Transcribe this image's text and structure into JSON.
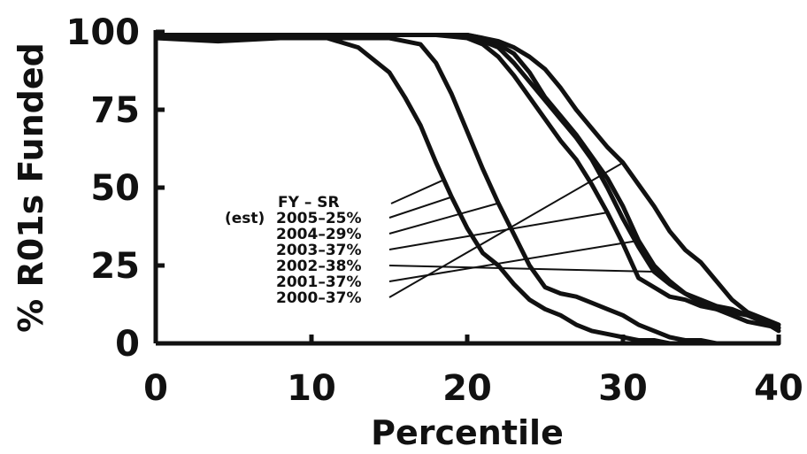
{
  "chart_data": {
    "type": "line",
    "xlabel": "Percentile",
    "ylabel": "% R01s Funded",
    "xlim": [
      0,
      40
    ],
    "ylim": [
      0,
      100
    ],
    "xticks": [
      "0",
      "10",
      "20",
      "30",
      "40"
    ],
    "yticks": [
      "0",
      "25",
      "50",
      "75",
      "100"
    ],
    "grid": false,
    "legend": {
      "placement": "center-left",
      "header": "FY  – SR",
      "est_label": "(est)"
    },
    "series": [
      {
        "name": "2005–25%",
        "x": [
          0,
          4,
          8,
          11,
          13,
          15,
          16,
          17,
          18,
          19,
          20,
          21,
          22,
          23,
          24,
          25,
          26,
          27,
          28,
          29,
          30,
          31,
          32,
          33,
          34,
          36,
          38,
          40
        ],
        "y": [
          98,
          97,
          98,
          98,
          95,
          87,
          79,
          70,
          58,
          47,
          37,
          29,
          25,
          19,
          14,
          11,
          9,
          6,
          4,
          3,
          2,
          1,
          1,
          0,
          0,
          0,
          0,
          0
        ]
      },
      {
        "name": "2004–29%",
        "x": [
          0,
          5,
          10,
          13,
          15,
          17,
          18,
          19,
          20,
          21,
          22,
          23,
          24,
          25,
          26,
          27,
          28,
          29,
          30,
          31,
          32,
          33,
          34,
          35,
          36,
          38,
          40
        ],
        "y": [
          98,
          98,
          98,
          98,
          98,
          96,
          90,
          80,
          68,
          56,
          45,
          35,
          25,
          18,
          16,
          15,
          13,
          11,
          9,
          6,
          4,
          2,
          1,
          1,
          0,
          0,
          0
        ]
      },
      {
        "name": "2003–37%",
        "x": [
          0,
          10,
          15,
          18,
          20,
          21,
          22,
          23,
          24,
          25,
          26,
          27,
          28,
          29,
          30,
          31,
          32,
          33,
          34,
          35,
          36,
          37,
          38,
          39,
          40
        ],
        "y": [
          99,
          99,
          99,
          99,
          98,
          96,
          92,
          86,
          79,
          72,
          65,
          59,
          51,
          42,
          32,
          21,
          18,
          15,
          14,
          12,
          11,
          9,
          7,
          6,
          5
        ]
      },
      {
        "name": "2002–38%",
        "x": [
          0,
          10,
          15,
          18,
          20,
          21,
          22,
          23,
          24,
          25,
          26,
          27,
          28,
          29,
          30,
          31,
          32,
          33,
          34,
          35,
          36,
          37,
          38,
          39,
          40
        ],
        "y": [
          99,
          99,
          99,
          99,
          99,
          97,
          95,
          90,
          84,
          78,
          72,
          66,
          59,
          50,
          40,
          31,
          23,
          19,
          16,
          13,
          11,
          10,
          9,
          7,
          5
        ]
      },
      {
        "name": "2001–37%",
        "x": [
          0,
          10,
          15,
          18,
          20,
          21,
          22,
          23,
          24,
          25,
          26,
          27,
          28,
          29,
          30,
          31,
          32,
          33,
          34,
          35,
          36,
          37,
          38,
          39,
          40
        ],
        "y": [
          99,
          99,
          99,
          99,
          99,
          98,
          96,
          93,
          87,
          79,
          73,
          67,
          60,
          53,
          44,
          33,
          25,
          20,
          16,
          14,
          12,
          11,
          9,
          7,
          4
        ]
      },
      {
        "name": "2000–37%",
        "x": [
          0,
          10,
          15,
          18,
          20,
          21,
          22,
          23,
          24,
          25,
          26,
          27,
          28,
          29,
          30,
          31,
          32,
          33,
          34,
          35,
          36,
          37,
          38,
          39,
          40
        ],
        "y": [
          99,
          99,
          99,
          99,
          99,
          98,
          97,
          95,
          92,
          88,
          82,
          75,
          69,
          63,
          58,
          51,
          44,
          36,
          30,
          26,
          20,
          14,
          10,
          8,
          6
        ]
      }
    ]
  }
}
